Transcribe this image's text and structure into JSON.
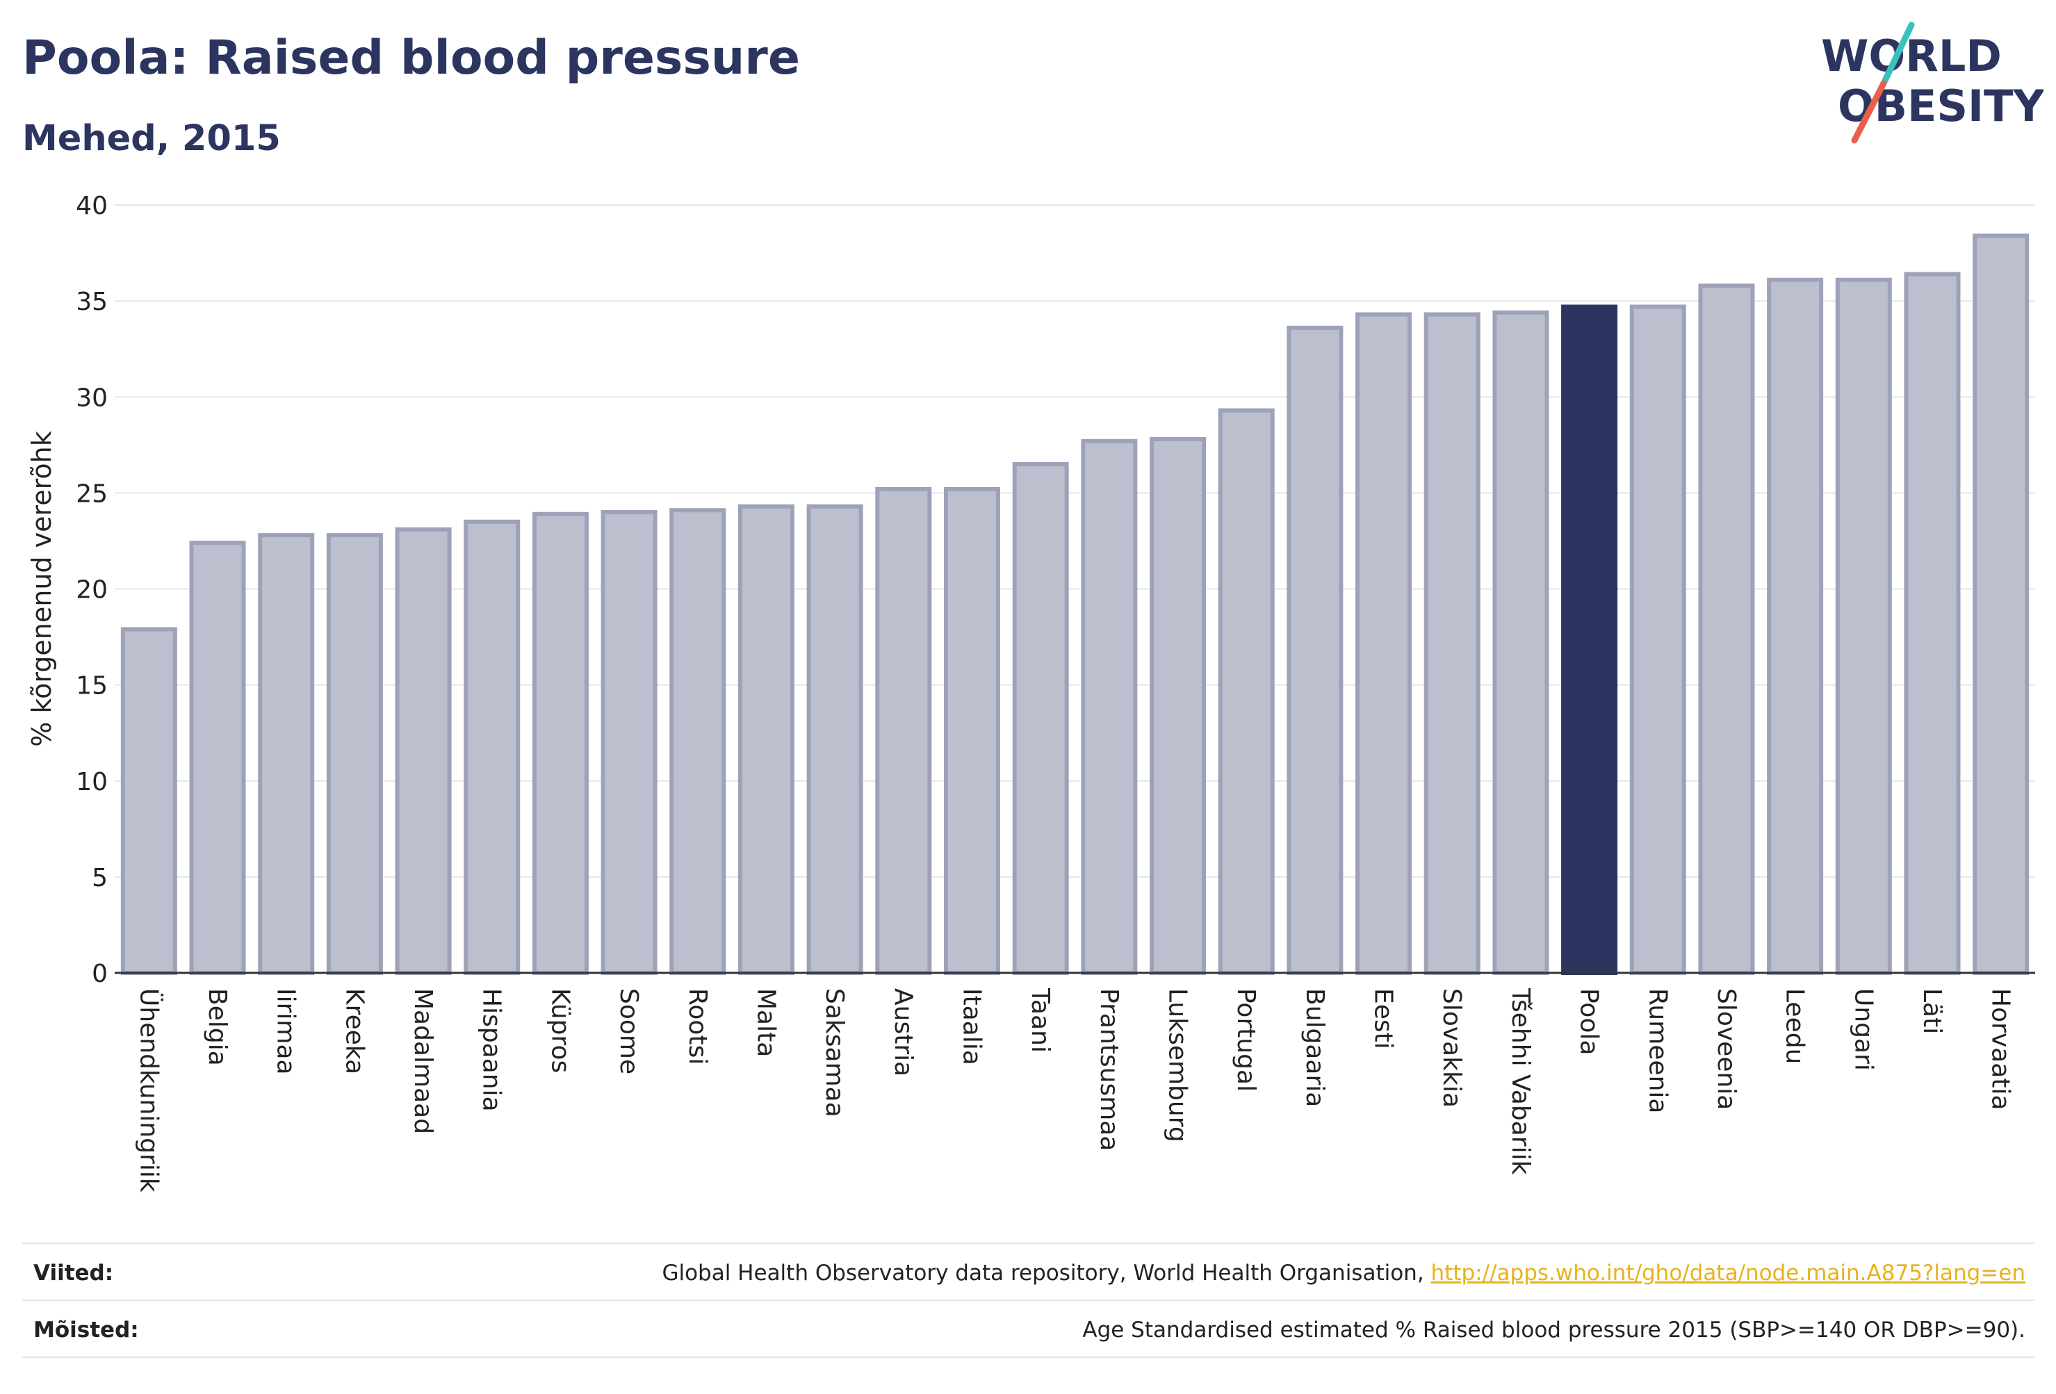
{
  "header": {
    "title": "Poola: Raised blood pressure",
    "subtitle": "Mehed, 2015"
  },
  "logo": {
    "line1": "WORLD",
    "line2": "OBESITY",
    "colors": {
      "text": "#2c3560",
      "slash_teal": "#3bbfbf",
      "slash_red": "#e8604c"
    }
  },
  "chart_data": {
    "type": "bar",
    "ylabel": "% kõrgenenud vererõhk",
    "ylim": [
      0,
      40
    ],
    "yticks": [
      0,
      5,
      10,
      15,
      20,
      25,
      30,
      35,
      40
    ],
    "grid": true,
    "highlight": "Poola",
    "colors": {
      "bar": "#bcc0ce",
      "bar_border": "#9da2b8",
      "highlight": "#2c3560",
      "grid": "#e6e7ec",
      "axis": "#333333"
    },
    "categories": [
      "Ühendkuningriik",
      "Belgia",
      "Iirimaa",
      "Kreeka",
      "Madalmaad",
      "Hispaania",
      "Küpros",
      "Soome",
      "Rootsi",
      "Malta",
      "Saksamaa",
      "Austria",
      "Itaalia",
      "Taani",
      "Prantsusmaa",
      "Luksemburg",
      "Portugal",
      "Bulgaaria",
      "Eesti",
      "Slovakkia",
      "Tšehhi Vabariik",
      "Poola",
      "Rumeenia",
      "Sloveenia",
      "Leedu",
      "Ungari",
      "Läti",
      "Horvaatia"
    ],
    "values": [
      17.9,
      22.4,
      22.8,
      22.8,
      23.1,
      23.5,
      23.9,
      24.0,
      24.1,
      24.3,
      24.3,
      25.2,
      25.2,
      26.5,
      27.7,
      27.8,
      29.3,
      33.6,
      34.3,
      34.3,
      34.4,
      34.7,
      34.7,
      35.8,
      36.1,
      36.1,
      36.4,
      38.4
    ]
  },
  "footer": {
    "sources_label": "Viited:",
    "sources_text": "Global Health Observatory data repository, World Health Organisation,",
    "sources_link": "http://apps.who.int/gho/data/node.main.A875?lang=en",
    "definitions_label": "Mõisted:",
    "definitions_text": "Age Standardised estimated % Raised blood pressure 2015 (SBP>=140 OR DBP>=90)."
  }
}
